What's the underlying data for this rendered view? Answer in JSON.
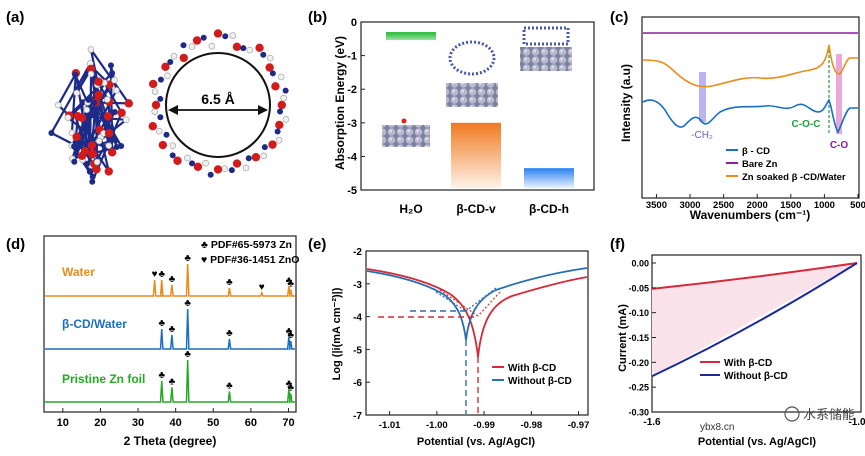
{
  "panel_labels": {
    "a": "(a)",
    "b": "(b)",
    "c": "(c)",
    "d": "(d)",
    "e": "(e)",
    "f": "(f)"
  },
  "watermark": {
    "text": "水系储能",
    "site": "ybx8.cn"
  },
  "chart_data": [
    {
      "panel": "a",
      "type": "other",
      "annotation": "6.5 Å"
    },
    {
      "panel": "b",
      "type": "bar",
      "ylabel": "Absorption Energy (eV)",
      "ylim": [
        -5,
        0
      ],
      "yticks": [
        "0",
        "-1",
        "-2",
        "-3",
        "-4",
        "-5"
      ],
      "categories": [
        "H₂O",
        "β-CD-v",
        "β-CD-h"
      ],
      "values": [
        -0.3,
        -3.0,
        -4.35
      ],
      "colors": [
        "#22bb33",
        "#f28a3a",
        "#3388ee"
      ]
    },
    {
      "panel": "c",
      "type": "line",
      "xlabel": "Wavenumbers (cm⁻¹)",
      "ylabel": "Intensity (a.u)",
      "xticks": [
        "3500",
        "3000",
        "2500",
        "2000",
        "1500",
        "1000",
        "500"
      ],
      "legend": [
        "β - CD",
        "Bare Zn",
        "Zn soaked β -CD/Water"
      ],
      "legend_colors": [
        "#1a6fc4",
        "#8a1e9e",
        "#e98c1c"
      ],
      "annotations": [
        "-CH₂",
        "C-O-C",
        "C-O"
      ]
    },
    {
      "panel": "d",
      "type": "line",
      "xlabel": "2 Theta (degree)",
      "xticks": [
        "10",
        "20",
        "30",
        "40",
        "50",
        "60",
        "70"
      ],
      "legend": [
        "PDF#65-5973 Zn",
        "PDF#36-1451 ZnO"
      ],
      "symbols": [
        "♣",
        "♥"
      ],
      "series": [
        {
          "name": "Water",
          "color": "#e98c1c"
        },
        {
          "name": "β-CD/Water",
          "color": "#1a6fc4"
        },
        {
          "name": "Pristine Zn foil",
          "color": "#22aa22"
        }
      ]
    },
    {
      "panel": "e",
      "type": "line",
      "xlabel": "Potential (vs. Ag/AgCl)",
      "ylabel": "Log (|i(mA cm⁻²)|)",
      "xticks": [
        "-1.01",
        "-1.00",
        "-0.99",
        "-0.98",
        "-0.97"
      ],
      "yticks": [
        "-2",
        "-3",
        "-4",
        "-5",
        "-6",
        "-7"
      ],
      "ylim": [
        -7,
        -2
      ],
      "legend": [
        "With β-CD",
        "Without β-CD"
      ],
      "legend_colors": [
        "#d42a3a",
        "#2a6fb4"
      ]
    },
    {
      "panel": "f",
      "type": "line",
      "xlabel": "Potential (vs. Ag/AgCl)",
      "ylabel": "Current (mA)",
      "xticks": [
        "-1.6",
        "-1.0"
      ],
      "yticks": [
        "0.00",
        "-0.05",
        "-0.10",
        "-0.15",
        "-0.20",
        "-0.25",
        "-0.30"
      ],
      "ylim": [
        -0.3,
        0.0
      ],
      "legend": [
        "With β-CD",
        "Without β-CD"
      ],
      "legend_colors": [
        "#d42a3a",
        "#1a2a9a"
      ],
      "series": [
        {
          "name": "With β-CD",
          "x": [
            -1.6,
            -1.0
          ],
          "y": [
            -0.052,
            0.0
          ]
        },
        {
          "name": "Without β-CD",
          "x": [
            -1.6,
            -1.0
          ],
          "y": [
            -0.228,
            0.0
          ]
        }
      ]
    }
  ]
}
